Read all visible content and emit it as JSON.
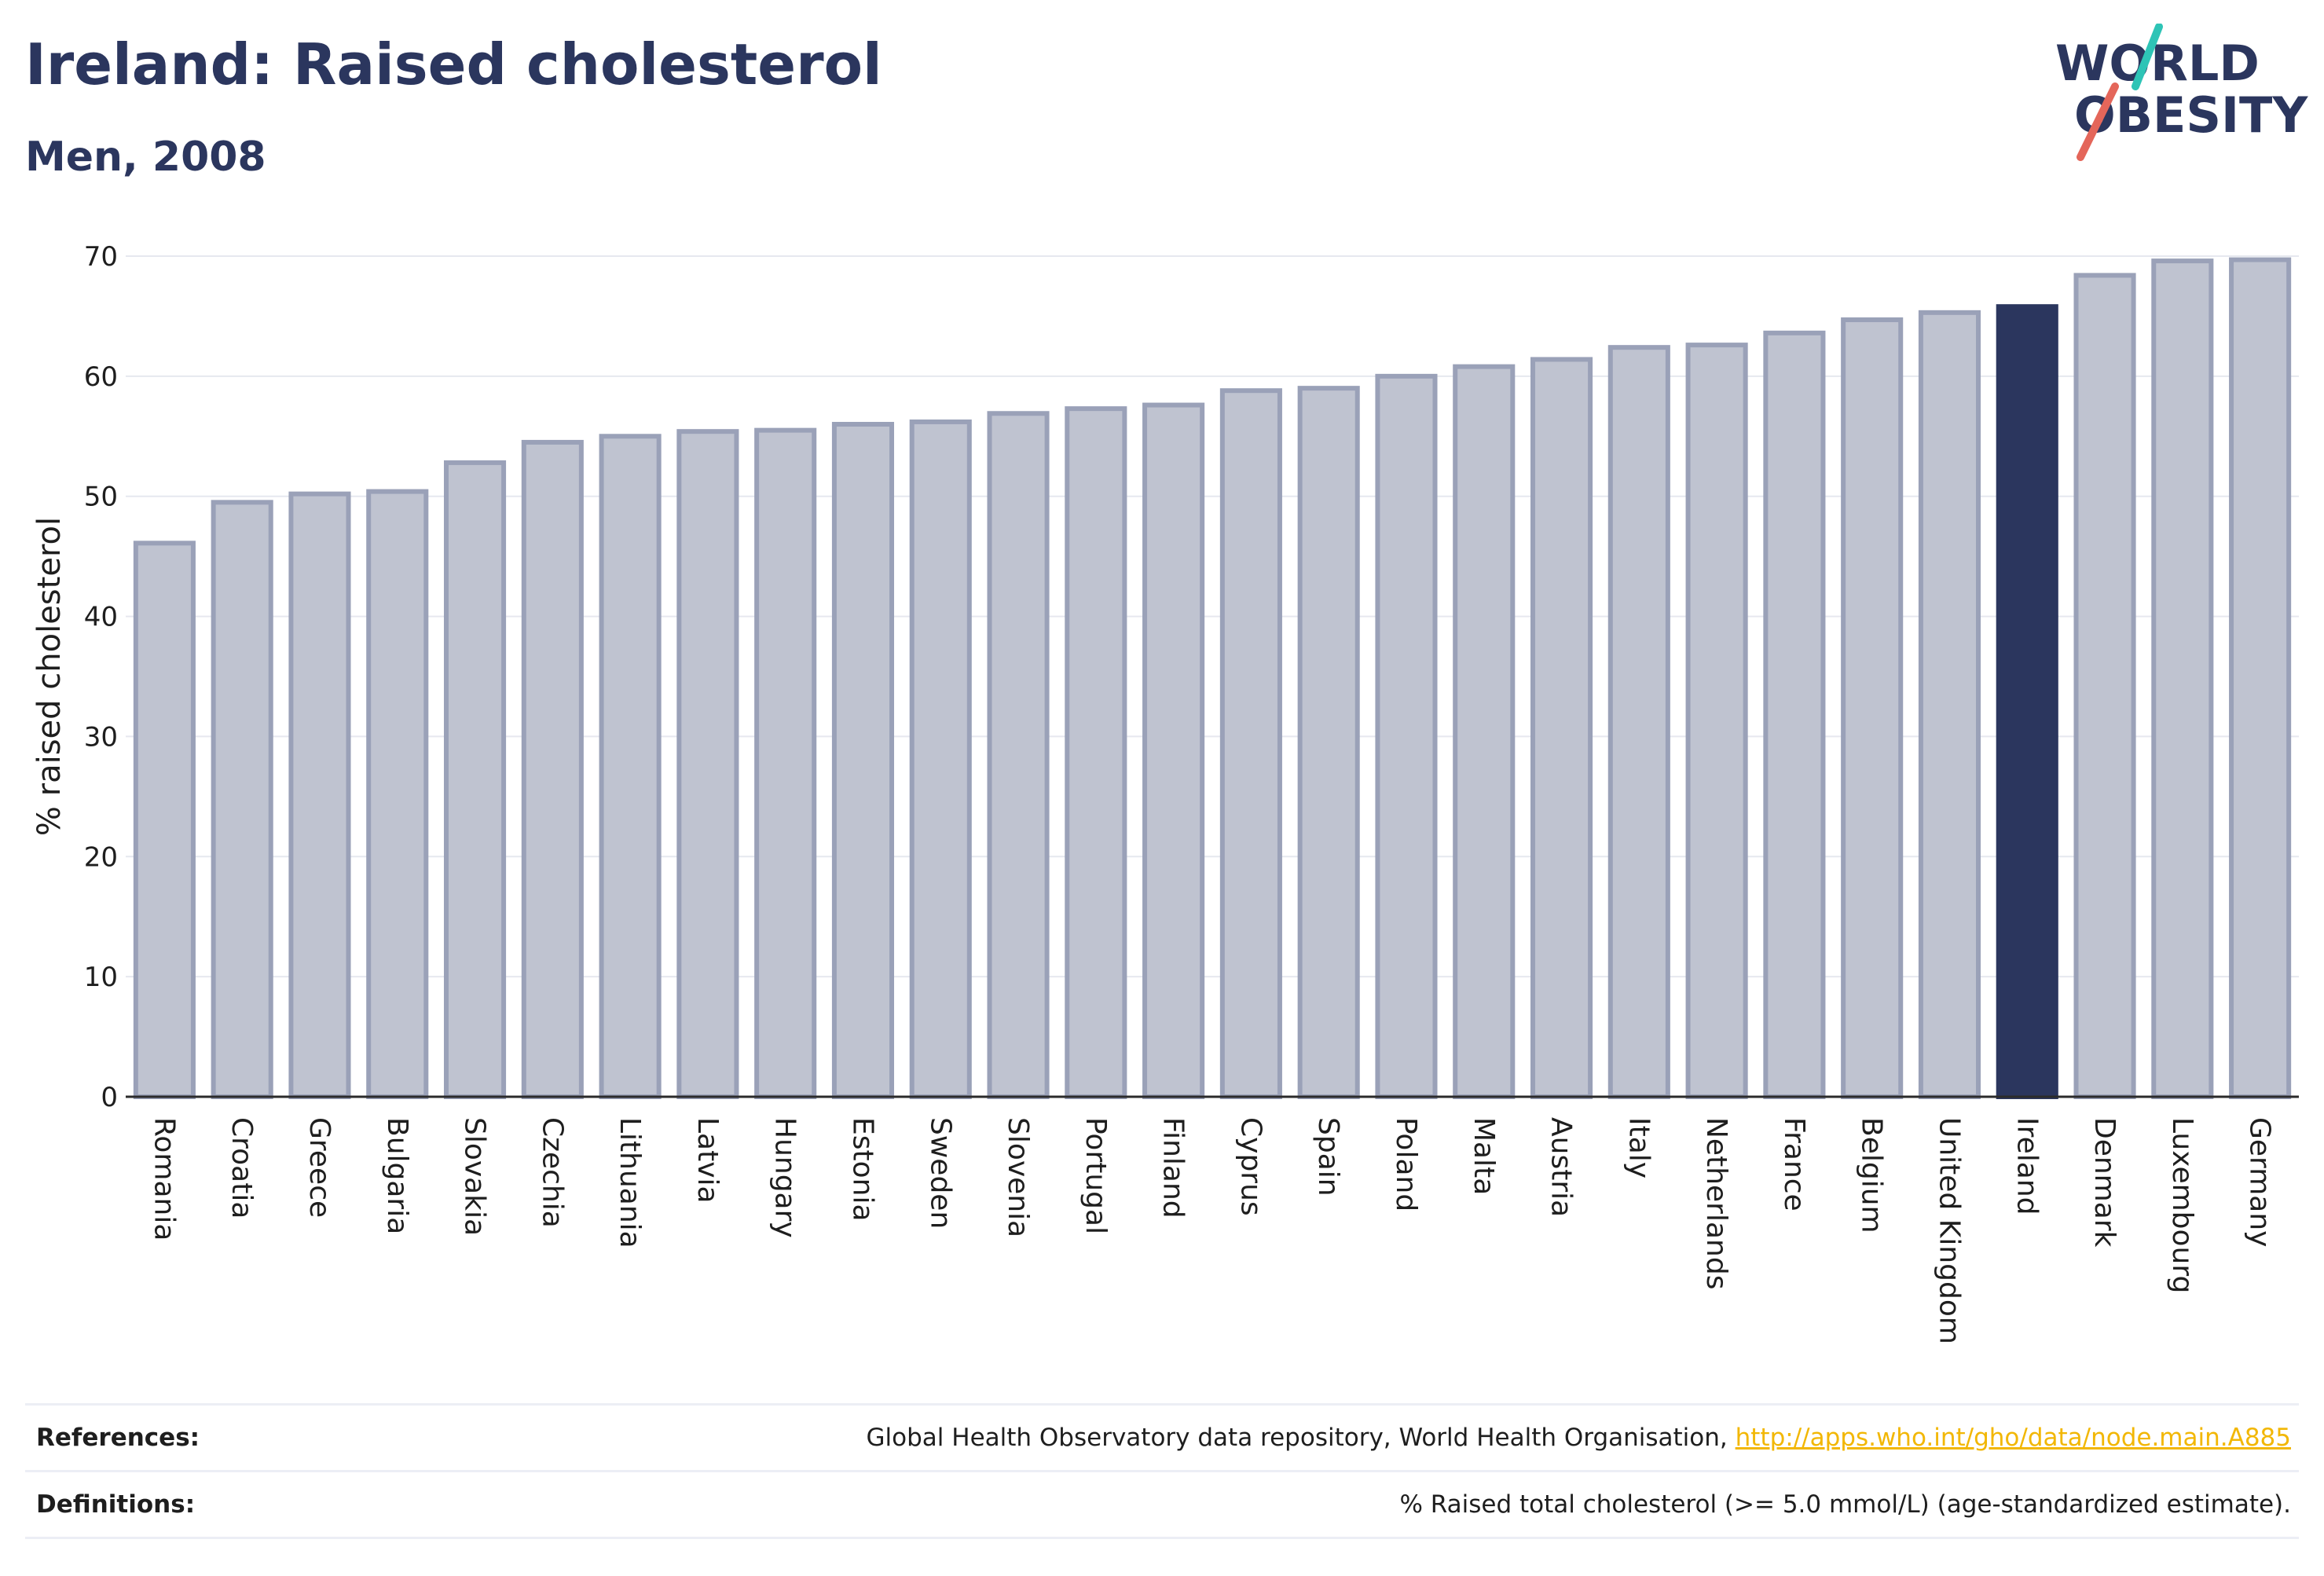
{
  "header": {
    "title": "Ireland: Raised cholesterol",
    "subtitle": "Men, 2008"
  },
  "logo": {
    "line1": "WORLD",
    "line2": "OBESITY",
    "brand_color": "#2b365e",
    "accent_teal": "#2ec4b6",
    "accent_coral": "#e4665a"
  },
  "chart_data": {
    "type": "bar",
    "title": "Ireland: Raised cholesterol",
    "subtitle": "Men, 2008",
    "xlabel": "",
    "ylabel": "% raised cholesterol",
    "ylim": [
      0,
      70
    ],
    "yticks": [
      0,
      10,
      20,
      30,
      40,
      50,
      60,
      70
    ],
    "grid": true,
    "highlight": "Ireland",
    "colors": {
      "bar": "#bfc3d0",
      "bar_edge": "#9aa1b8",
      "highlight": "#2b365e"
    },
    "categories": [
      "Romania",
      "Croatia",
      "Greece",
      "Bulgaria",
      "Slovakia",
      "Czechia",
      "Lithuania",
      "Latvia",
      "Hungary",
      "Estonia",
      "Sweden",
      "Slovenia",
      "Portugal",
      "Finland",
      "Cyprus",
      "Spain",
      "Poland",
      "Malta",
      "Austria",
      "Italy",
      "Netherlands",
      "France",
      "Belgium",
      "United Kingdom",
      "Ireland",
      "Denmark",
      "Luxembourg",
      "Germany"
    ],
    "values": [
      46.1,
      49.5,
      50.2,
      50.4,
      52.8,
      54.5,
      55.0,
      55.4,
      55.5,
      56.0,
      56.2,
      56.9,
      57.3,
      57.6,
      58.8,
      59.0,
      60.0,
      60.8,
      61.4,
      62.4,
      62.6,
      63.6,
      64.7,
      65.3,
      65.8,
      68.4,
      69.6,
      69.7
    ]
  },
  "footer": {
    "references_label": "References:",
    "references_text": "Global Health Observatory data repository, World Health Organisation, ",
    "references_link": "http://apps.who.int/gho/data/node.main.A885",
    "definitions_label": "Definitions:",
    "definitions_text": "% Raised total cholesterol (>= 5.0 mmol/L) (age-standardized estimate)."
  }
}
